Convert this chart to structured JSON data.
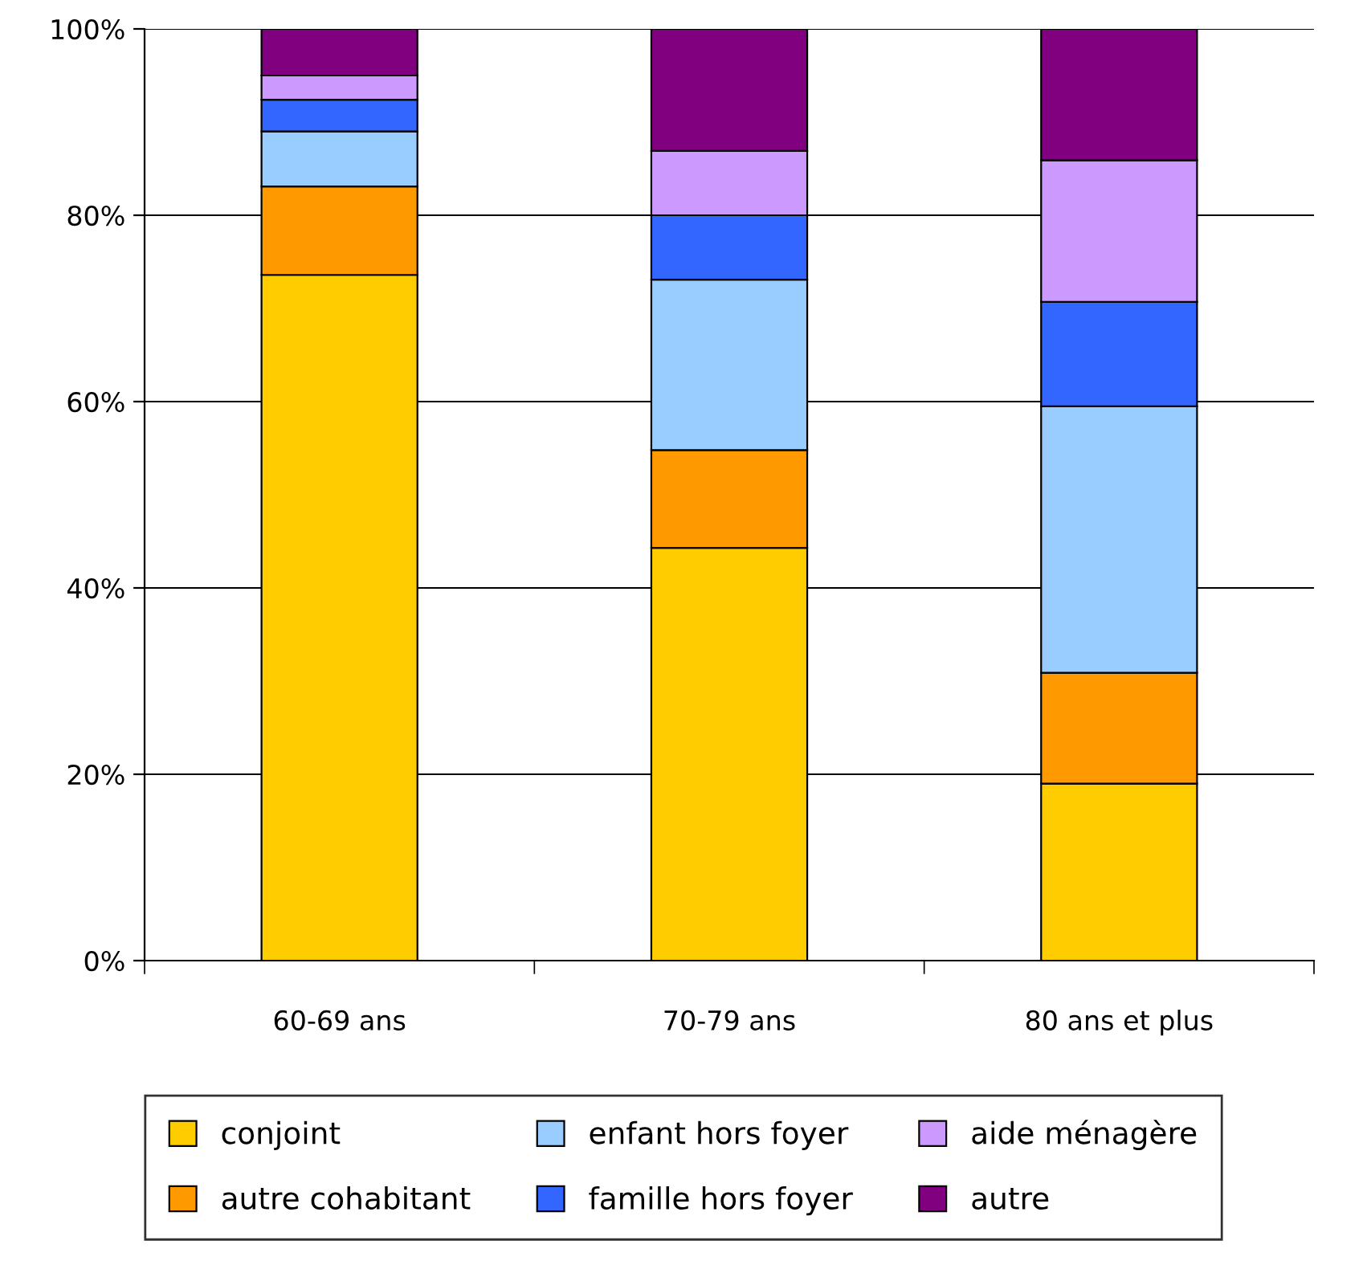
{
  "chart_data": {
    "type": "bar",
    "stacked": true,
    "categories": [
      "60-69 ans",
      "70-79 ans",
      "80 ans et plus"
    ],
    "series": [
      {
        "name": "conjoint",
        "color": "#ffcc00",
        "values": [
          73.6,
          44.3,
          19.0
        ]
      },
      {
        "name": "autre cohabitant",
        "color": "#ff9900",
        "values": [
          9.5,
          10.5,
          11.9
        ]
      },
      {
        "name": "enfant hors foyer",
        "color": "#99ccff",
        "values": [
          5.9,
          18.3,
          28.6
        ]
      },
      {
        "name": "famille hors foyer",
        "color": "#3366ff",
        "values": [
          3.4,
          6.9,
          11.2
        ]
      },
      {
        "name": "aide ménagère",
        "color": "#cc99ff",
        "values": [
          2.6,
          6.9,
          15.2
        ]
      },
      {
        "name": "autre",
        "color": "#800080",
        "values": [
          5.0,
          13.1,
          14.1
        ]
      }
    ],
    "ylim": [
      0,
      100
    ],
    "yticks": [
      {
        "value": 0,
        "label": "0%"
      },
      {
        "value": 20,
        "label": "20%"
      },
      {
        "value": 40,
        "label": "40%"
      },
      {
        "value": 60,
        "label": "60%"
      },
      {
        "value": 80,
        "label": "80%"
      },
      {
        "value": 100,
        "label": "100%"
      }
    ],
    "grid": "y",
    "legend": "bottom"
  }
}
